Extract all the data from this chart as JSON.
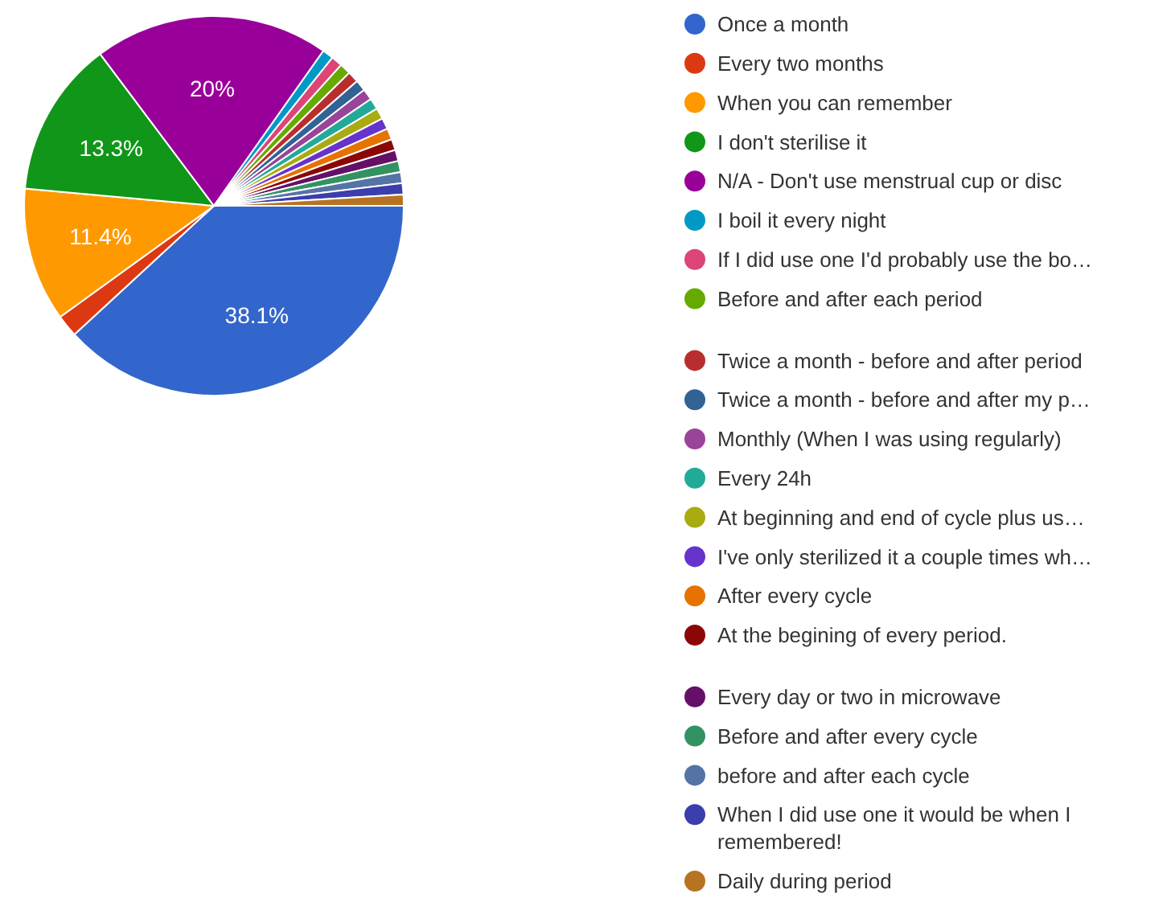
{
  "chart_data": {
    "type": "pie",
    "categories": [
      "Once a month",
      "Every two months",
      "When you can remember",
      "I don't sterilise it",
      "N/A - Don't use menstrual cup or disc",
      "I boil it every night",
      "If I did use one I'd probably use the bo…",
      "Before and after each period",
      "Twice a month - before and after period",
      "Twice a month - before and after my p…",
      "Monthly (When I was using regularly)",
      "Every 24h",
      "At beginning and end of cycle plus us…",
      "I've only sterilized it a couple times wh…",
      "After every cycle",
      "At the begining of every period.",
      "Every day or two in microwave",
      "Before and after every cycle",
      "before and after each cycle",
      "When I did use one it would be when I remembered!",
      "Daily during period"
    ],
    "values": [
      38.1,
      1.9,
      11.4,
      13.3,
      20,
      0.95,
      0.95,
      0.95,
      0.95,
      0.95,
      0.95,
      0.95,
      0.95,
      0.95,
      0.95,
      0.95,
      0.95,
      0.95,
      0.95,
      0.95,
      0.95
    ],
    "value_labels": [
      "38.1%",
      null,
      "11.4%",
      "13.3%",
      "20%",
      null,
      null,
      null,
      null,
      null,
      null,
      null,
      null,
      null,
      null,
      null,
      null,
      null,
      null,
      null,
      null
    ],
    "colors": [
      "#3366cc",
      "#dc3912",
      "#ff9900",
      "#109618",
      "#990099",
      "#0099c6",
      "#dd4477",
      "#66aa00",
      "#b82e2e",
      "#316395",
      "#994499",
      "#22aa99",
      "#aaaa11",
      "#6633cc",
      "#e67300",
      "#8b0707",
      "#651067",
      "#329262",
      "#5574a6",
      "#3b3eac",
      "#b77322"
    ],
    "legend": "right"
  }
}
